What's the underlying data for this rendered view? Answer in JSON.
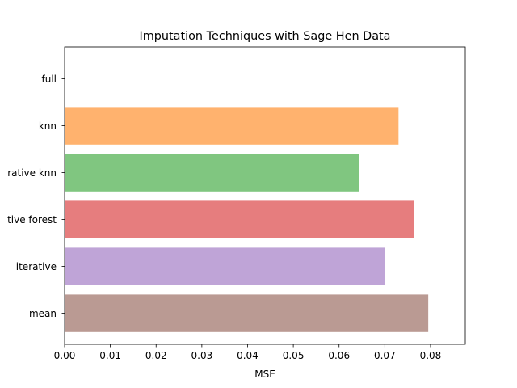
{
  "chart_data": {
    "type": "bar",
    "orientation": "horizontal",
    "title": "Imputation Techniques with Sage Hen Data",
    "xlabel": "MSE",
    "ylabel": "",
    "xlim": [
      0.0,
      0.0876
    ],
    "xticks": [
      "0.00",
      "0.01",
      "0.02",
      "0.03",
      "0.04",
      "0.05",
      "0.06",
      "0.07",
      "0.08"
    ],
    "grid": false,
    "categories": [
      "full",
      "knn",
      "rative knn",
      "tive forest",
      "iterative",
      "mean"
    ],
    "values": [
      0.0,
      0.073,
      0.0644,
      0.0763,
      0.07,
      0.0795
    ],
    "colors": [
      "#1f77b4",
      "#ff7f0e",
      "#2ca02c",
      "#d62728",
      "#9467bd",
      "#8c564b"
    ],
    "bar_alpha": 0.6
  }
}
